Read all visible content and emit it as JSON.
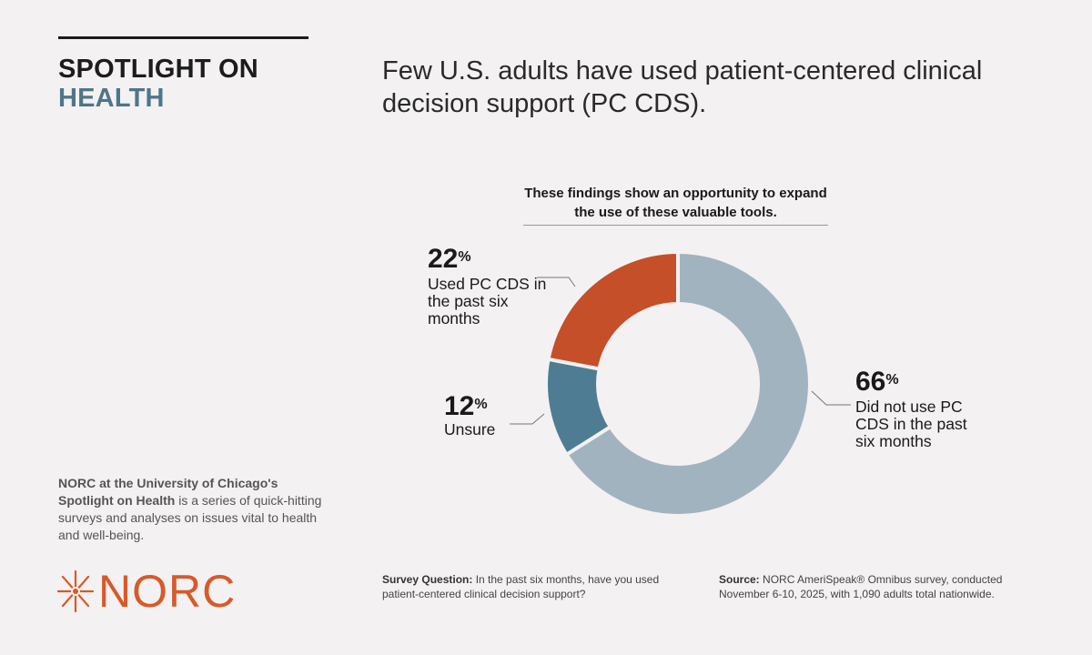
{
  "brand": {
    "line1": "SPOTLIGHT ON",
    "line2": "HEALTH"
  },
  "headline": "Few U.S. adults have used patient-centered clinical decision support (PC CDS).",
  "about": {
    "bold": "NORC at the University of Chicago's Spotlight on Health",
    "rest": " is a series of quick-hitting surveys and analyses on issues vital to health and well-being."
  },
  "logo": {
    "text": "NORC",
    "icon": "starburst-icon",
    "color": "#d65a2a"
  },
  "footer": {
    "question_label": "Survey Question:",
    "question_text": " In the past six months, have you used patient-centered clinical decision support?",
    "source_label": "Source:",
    "source_text": " NORC AmeriSpeak® Omnibus survey, conducted November 6-10, 2025, with 1,090 adults total nationwide."
  },
  "chart_data": {
    "type": "pie",
    "donut": true,
    "title": "These findings show an opportunity to expand the use of these valuable tools.",
    "unit": "%",
    "slices": [
      {
        "label": "Did not use PC CDS in the past six months",
        "value": 66,
        "color": "#a2b3c0"
      },
      {
        "label": "Unsure",
        "value": 12,
        "color": "#4e7d93"
      },
      {
        "label": "Used PC CDS in the past six months",
        "value": 22,
        "color": "#c54f28"
      }
    ]
  }
}
